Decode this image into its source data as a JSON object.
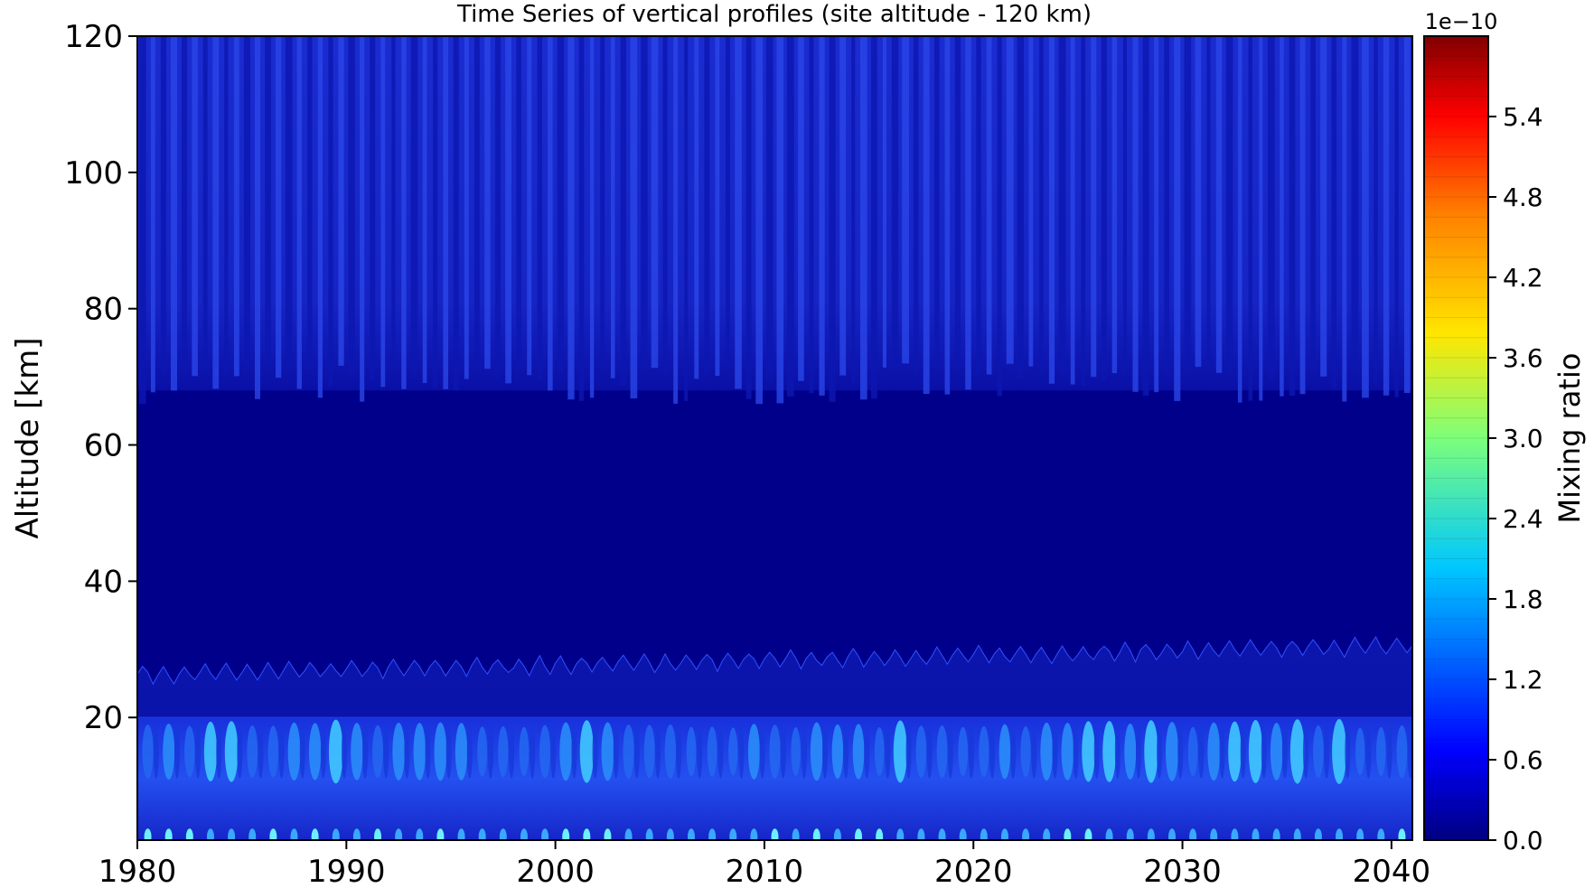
{
  "chart_data": {
    "type": "heatmap",
    "title": "Time Series of vertical profiles (site altitude - 120 km)",
    "xlabel": "",
    "ylabel": "Altitude [km]",
    "xlim": [
      1980,
      2041
    ],
    "ylim": [
      2,
      120
    ],
    "x_ticks": [
      1980,
      1990,
      2000,
      2010,
      2020,
      2030,
      2040
    ],
    "x_tick_labels": [
      "1980",
      "1990",
      "2000",
      "2010",
      "2020",
      "2030",
      "2040"
    ],
    "y_ticks": [
      20,
      40,
      60,
      80,
      100,
      120
    ],
    "y_tick_labels": [
      "20",
      "40",
      "60",
      "80",
      "100",
      "120"
    ],
    "colorbar": {
      "label": "Mixing ratio",
      "offset_text": "1e−10",
      "range": [
        0.0,
        6.0
      ],
      "ticks": [
        0.0,
        0.6,
        1.2,
        1.8,
        2.4,
        3.0,
        3.6,
        4.2,
        4.8,
        5.4
      ],
      "tick_labels": [
        "0.0",
        "0.6",
        "1.2",
        "1.8",
        "2.4",
        "3.0",
        "3.6",
        "4.2",
        "4.8",
        "5.4"
      ],
      "levels": 40,
      "colormap": "jet"
    },
    "regions": [
      {
        "altitude_range": [
          68,
          120
        ],
        "value_range": [
          0.1,
          0.4
        ],
        "pattern": "annual oscillation streaks"
      },
      {
        "altitude_range": [
          30,
          68
        ],
        "value_range": [
          0.0,
          0.1
        ],
        "pattern": "uniform"
      },
      {
        "altitude_range": [
          20,
          30
        ],
        "value_range": [
          0.15,
          0.3
        ],
        "pattern": "uniform"
      },
      {
        "altitude_range": [
          10,
          20
        ],
        "value_range": [
          0.4,
          2.2
        ],
        "pattern": "annual maxima near 15 km"
      },
      {
        "altitude_range": [
          2,
          10
        ],
        "value_range": [
          0.2,
          0.8
        ],
        "pattern": "annual"
      }
    ]
  },
  "colors": {
    "background": "#ffffff",
    "deep_blue": "#00008b",
    "axis": "#000000"
  }
}
